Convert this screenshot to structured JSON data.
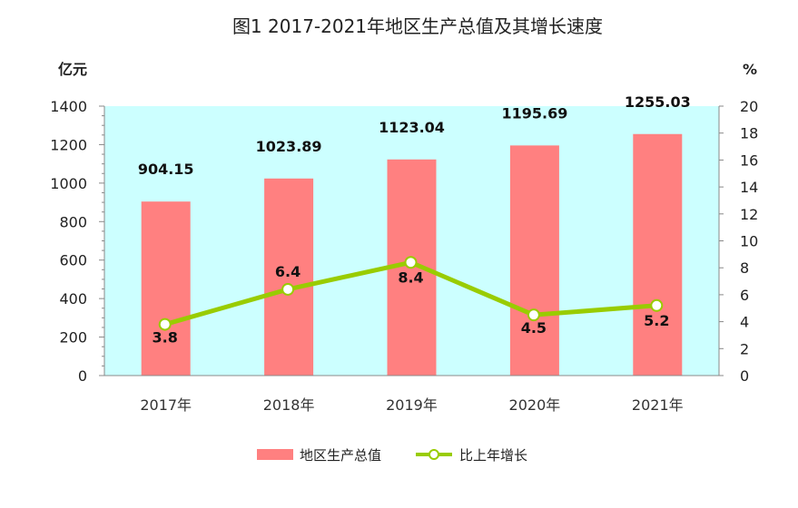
{
  "chart_data": {
    "type": "bar",
    "title": "图1   2017-2021年地区生产总值及其增长速度",
    "categories": [
      "2017年",
      "2018年",
      "2019年",
      "2020年",
      "2021年"
    ],
    "y_left_unit": "亿元",
    "y_right_unit": "%",
    "y_left_range": [
      0,
      1400
    ],
    "y_left_ticks": [
      "0",
      "200",
      "400",
      "600",
      "800",
      "1000",
      "1200",
      "1400"
    ],
    "y_right_range": [
      0,
      20
    ],
    "y_right_ticks": [
      "0",
      "2",
      "4",
      "6",
      "8",
      "10",
      "12",
      "14",
      "16",
      "18",
      "20"
    ],
    "grid": false,
    "legend_position": "bottom",
    "series": [
      {
        "name": "地区生产总值",
        "type": "bar",
        "axis": "left",
        "color": "#ff8080",
        "values": [
          904.15,
          1023.89,
          1123.04,
          1195.69,
          1255.03
        ],
        "labels": [
          "904.15",
          "1023.89",
          "1123.04",
          "1195.69",
          "1255.03"
        ]
      },
      {
        "name": "比上年增长",
        "type": "line",
        "axis": "right",
        "color": "#99cc00",
        "values": [
          3.8,
          6.4,
          8.4,
          4.5,
          5.2
        ],
        "labels": [
          "3.8",
          "6.4",
          "8.4",
          "4.5",
          "5.2"
        ]
      }
    ],
    "plot_background": "#ccffff"
  }
}
